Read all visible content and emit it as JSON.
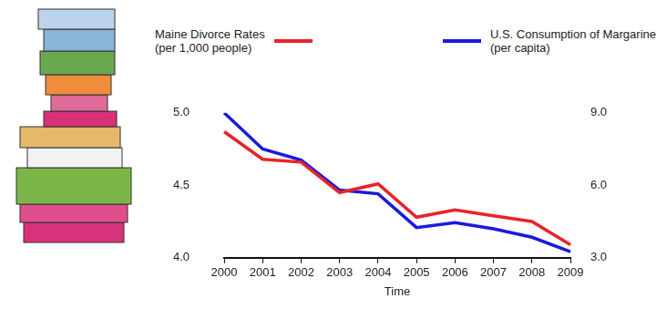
{
  "chart_data": {
    "type": "line",
    "categories": [
      "2000",
      "2001",
      "2002",
      "2003",
      "2004",
      "2005",
      "2006",
      "2007",
      "2008",
      "2009"
    ],
    "series": [
      {
        "name": "Maine Divorce Rates (per 1,000 people)",
        "color": "#e8232a",
        "values": [
          4.87,
          4.68,
          4.66,
          4.45,
          4.51,
          4.28,
          4.33,
          4.29,
          4.25,
          4.09
        ]
      },
      {
        "name": "U.S. Consumption of Margarine (per capita)",
        "color": "#1a1adb",
        "axis": "y2",
        "values": [
          9.0,
          7.5,
          7.05,
          5.8,
          5.65,
          4.25,
          4.45,
          4.2,
          3.85,
          3.25
        ]
      }
    ],
    "xlabel": "Time",
    "ylim": [
      4.0,
      5.0
    ],
    "yticks": [
      {
        "value": 4,
        "label": "4.0"
      },
      {
        "value": 4.5,
        "label": "4.5"
      },
      {
        "value": 5,
        "label": "5.0"
      }
    ],
    "y2lim": [
      3.0,
      9.0
    ],
    "y2ticks": [
      {
        "value": 3,
        "label": "3.0"
      },
      {
        "value": 6,
        "label": "6.0"
      },
      {
        "value": 9,
        "label": "9.0"
      }
    ],
    "grid": false,
    "legend": "top"
  }
}
